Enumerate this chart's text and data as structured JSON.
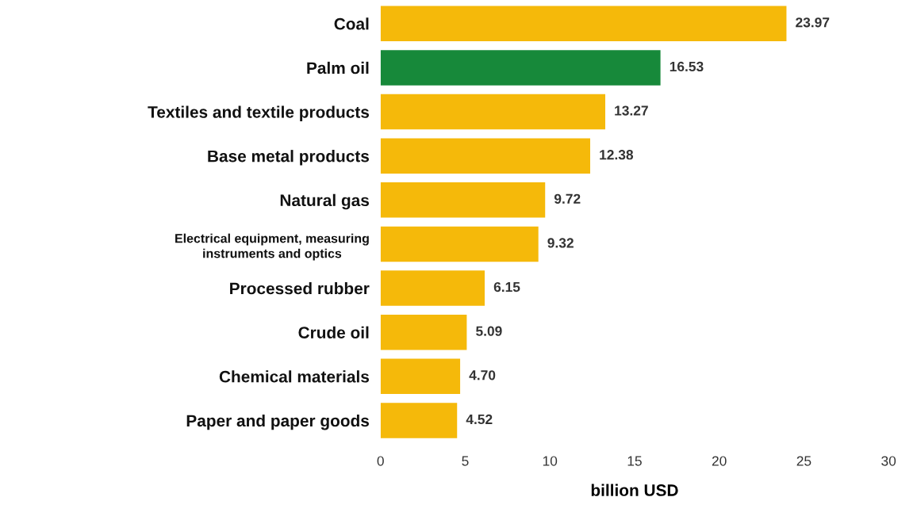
{
  "chart_data": {
    "type": "bar",
    "orientation": "horizontal",
    "xlabel": "billion USD",
    "categories": [
      "Coal",
      "Palm oil",
      "Textiles and textile products",
      "Base metal products",
      "Natural gas",
      "Electrical equipment, measuring\ninstruments and optics",
      "Processed rubber",
      "Crude oil",
      "Chemical materials",
      "Paper and paper goods"
    ],
    "values": [
      23.97,
      16.53,
      13.27,
      12.38,
      9.72,
      9.32,
      6.15,
      5.09,
      4.7,
      4.52
    ],
    "value_labels": [
      "23.97",
      "16.53",
      "13.27",
      "12.38",
      "9.72",
      "9.32",
      "6.15",
      "5.09",
      "4.70",
      "4.52"
    ],
    "colors": [
      "#f5b90a",
      "#17893a",
      "#f5b90a",
      "#f5b90a",
      "#f5b90a",
      "#f5b90a",
      "#f5b90a",
      "#f5b90a",
      "#f5b90a",
      "#f5b90a"
    ],
    "xlim": [
      0,
      30
    ],
    "xticks": [
      0,
      5,
      10,
      15,
      20,
      25,
      30
    ],
    "grid": false,
    "legend": false
  }
}
